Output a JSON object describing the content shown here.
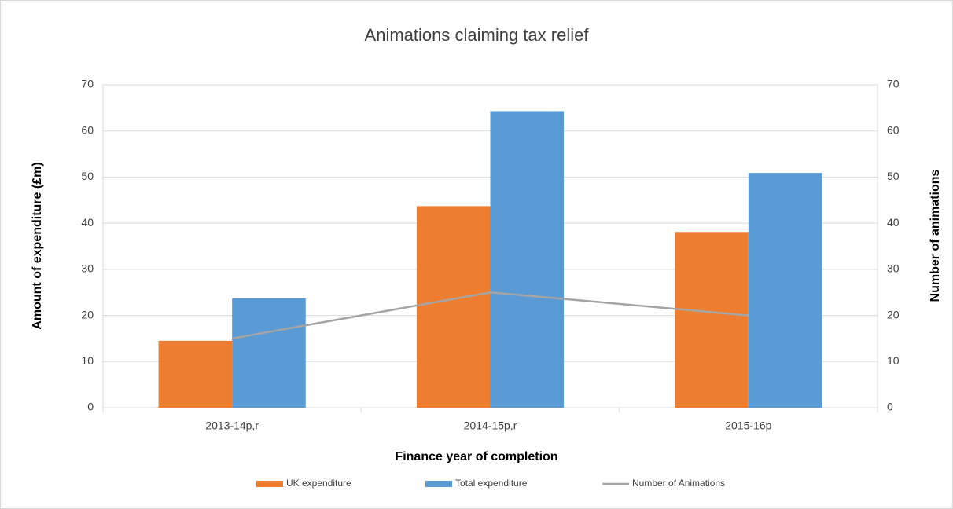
{
  "chart_data": {
    "type": "bar",
    "title": "Animations claiming tax relief",
    "x_label": "Finance year of completion",
    "y_label": "Amount of expenditure (£m)",
    "y2_label": "Number of animations",
    "categories": [
      "2013-14p,r",
      "2014-15p,r",
      "2015-16p"
    ],
    "series": [
      {
        "name": "UK expenditure",
        "type": "bar",
        "color": "#ed7d31",
        "values": [
          14.5,
          43.7,
          38.1
        ]
      },
      {
        "name": "Total expenditure",
        "type": "bar",
        "color": "#5b9bd5",
        "values": [
          23.7,
          64.3,
          50.9
        ]
      },
      {
        "name": "Number of Animations",
        "type": "line",
        "axis": "y2",
        "color": "#a5a5a5",
        "values": [
          15,
          25,
          20
        ]
      }
    ],
    "ylim": [
      0,
      70
    ],
    "yticks": [
      0,
      10,
      20,
      30,
      40,
      50,
      60,
      70
    ],
    "y2lim": [
      0,
      70
    ],
    "y2ticks": [
      0,
      10,
      20,
      30,
      40,
      50,
      60,
      70
    ],
    "grid": true,
    "legend": "bottom"
  }
}
